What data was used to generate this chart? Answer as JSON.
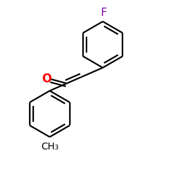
{
  "background_color": "#ffffff",
  "bond_color": "#000000",
  "oxygen_color": "#ff0000",
  "fluorine_color": "#7b00a0",
  "carbon_color": "#000000",
  "line_width": 1.6,
  "figsize": [
    2.5,
    2.5
  ],
  "dpi": 100,
  "r1cx": 0.595,
  "r1cy": 0.745,
  "r1r": 0.135,
  "r2cx": 0.285,
  "r2cy": 0.34,
  "r2r": 0.135,
  "xlim": [
    0.0,
    1.0
  ],
  "ylim": [
    0.0,
    1.0
  ]
}
